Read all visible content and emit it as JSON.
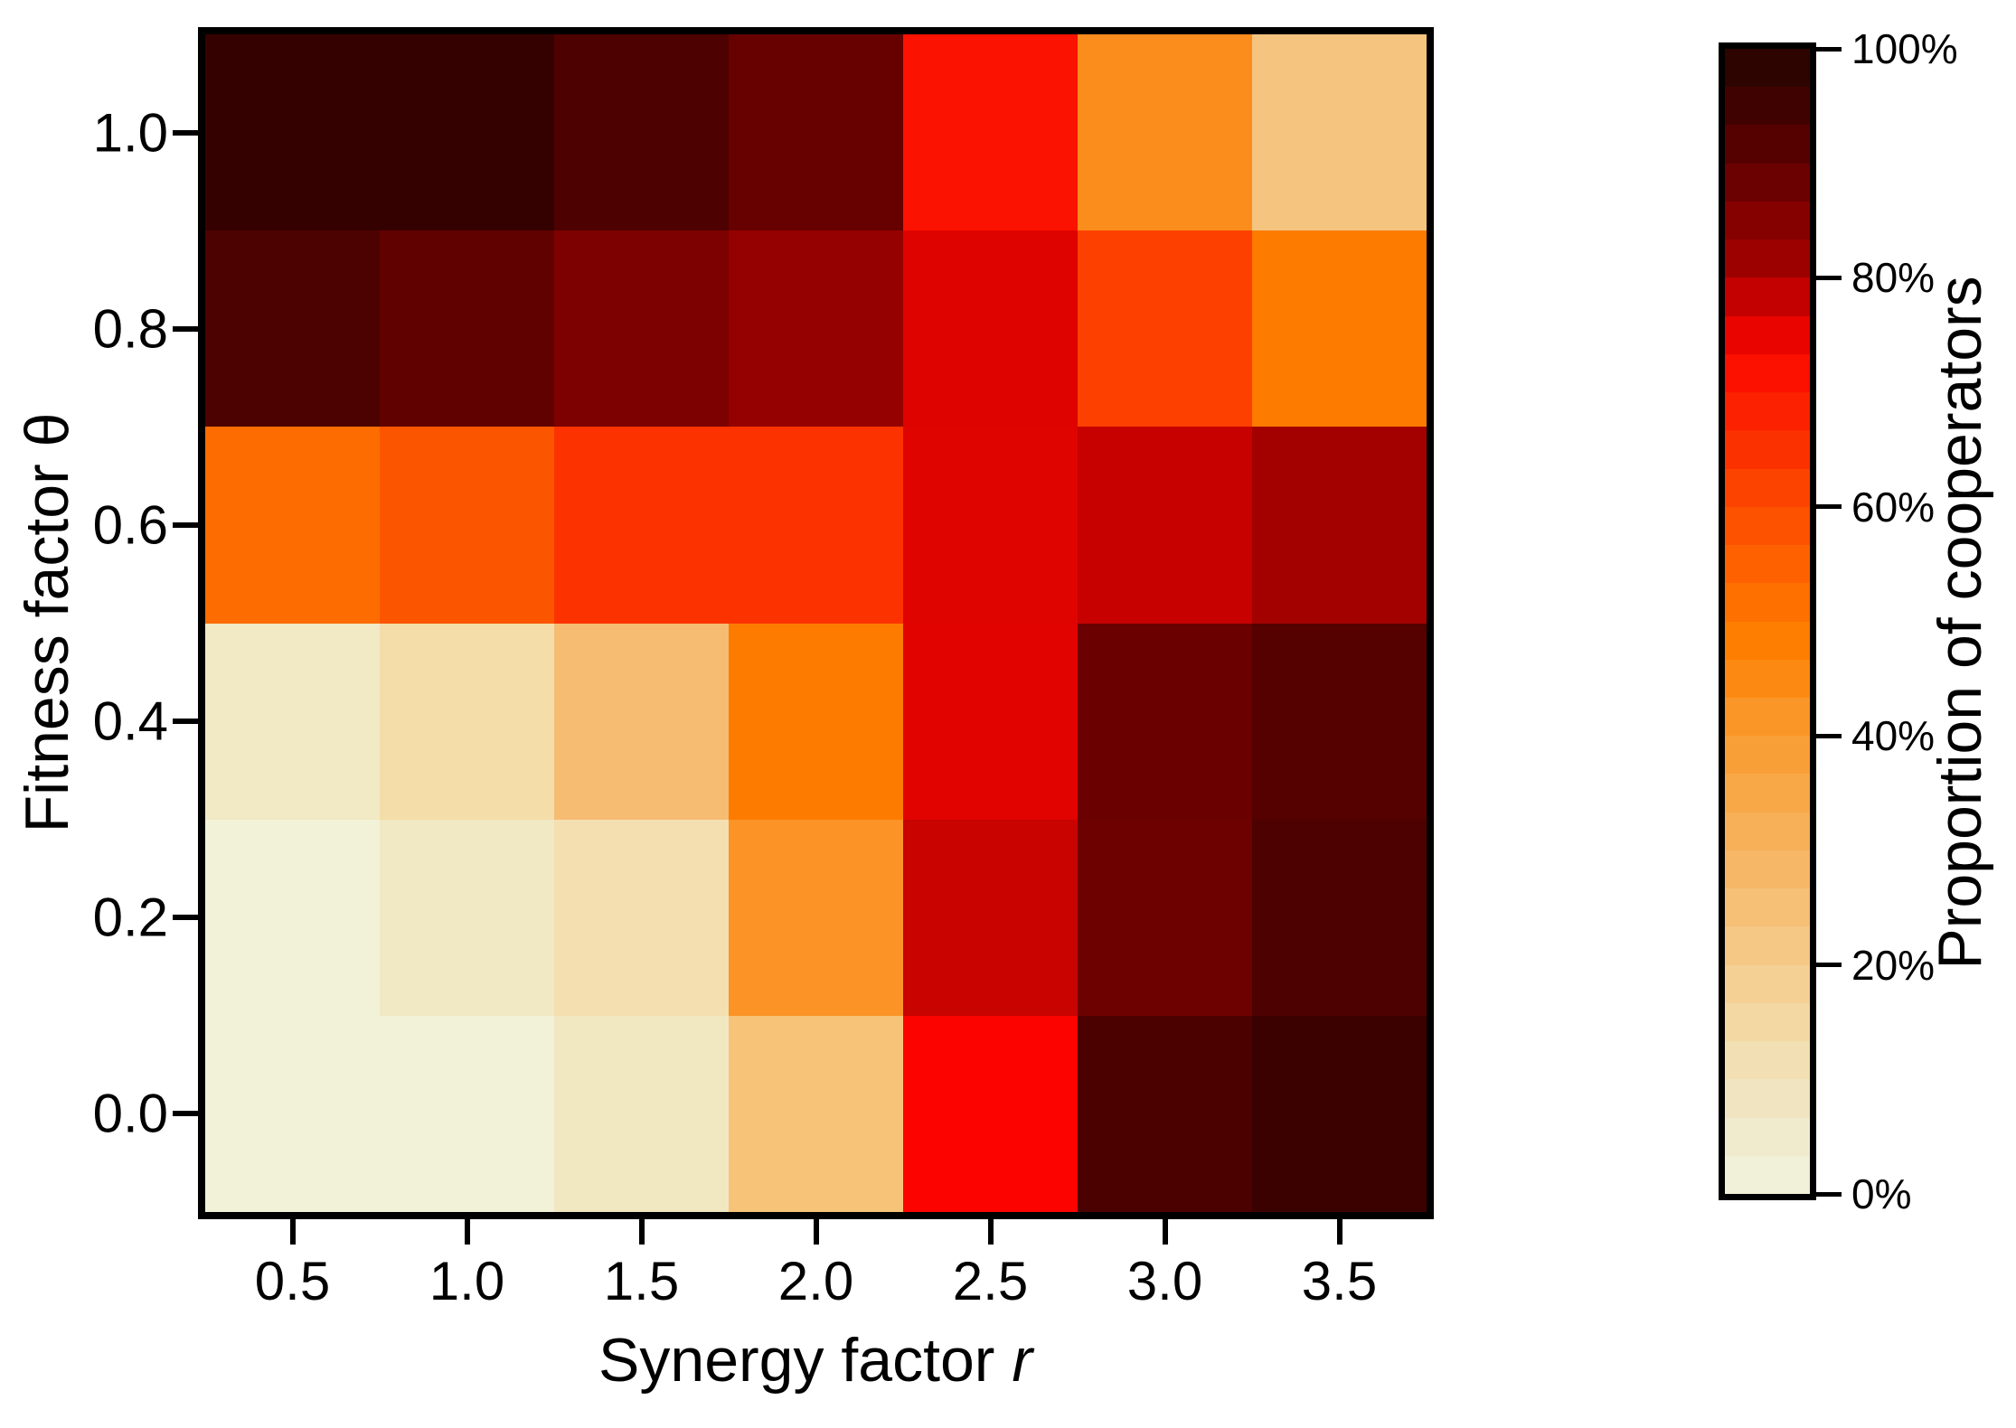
{
  "figure": {
    "background": "#ffffff",
    "xlabel_text": "Synergy factor ",
    "xlabel_symbol": "r",
    "ylabel_text": "Fitness factor θ",
    "x_tick_labels": [
      "0.5",
      "1.0",
      "1.5",
      "2.0",
      "2.5",
      "3.0",
      "3.5"
    ],
    "y_tick_labels": [
      "1.0",
      "0.8",
      "0.6",
      "0.4",
      "0.2",
      "0.0"
    ]
  },
  "colorbar": {
    "label": "Proportion of cooperators",
    "tick_labels": [
      "100%",
      "80%",
      "60%",
      "40%",
      "20%",
      "0%"
    ],
    "segment_colors_top_to_bottom": [
      "#2d0400",
      "#400200",
      "#550100",
      "#6b0100",
      "#850100",
      "#9c0100",
      "#c30100",
      "#ea0400",
      "#fc1000",
      "#fc2100",
      "#fc3100",
      "#fd4300",
      "#fd5200",
      "#fe6200",
      "#fe7000",
      "#fd7e00",
      "#fc8a12",
      "#fa9527",
      "#f99f38",
      "#f8a847",
      "#f7b058",
      "#f6b867",
      "#f6c077",
      "#f5c886",
      "#f4d095",
      "#f3d8a4",
      "#f2dfb3",
      "#f0e5c0",
      "#f1ebcd",
      "#f1f0d8"
    ]
  },
  "chart_data": {
    "type": "heatmap",
    "title": "",
    "xlabel": "Synergy factor r",
    "ylabel": "Fitness factor θ",
    "colorbar_label": "Proportion of cooperators",
    "x_categories": [
      0.5,
      1.0,
      1.5,
      2.0,
      2.5,
      3.0,
      3.5
    ],
    "y_categories_top_to_bottom": [
      1.0,
      0.8,
      0.6,
      0.4,
      0.2,
      0.0
    ],
    "value_unit": "%",
    "value_range": [
      0,
      100
    ],
    "legend_position": "right",
    "grid": false,
    "values_percent": [
      [
        96,
        96,
        93,
        89,
        71,
        43,
        22
      ],
      [
        93,
        90,
        86,
        82,
        76,
        62,
        48
      ],
      [
        51,
        56,
        65,
        65,
        75,
        78,
        81
      ],
      [
        6,
        13,
        26,
        48,
        75,
        88,
        91
      ],
      [
        2,
        6,
        12,
        42,
        78,
        88,
        93
      ],
      [
        2,
        2,
        6,
        23,
        73,
        93,
        95
      ]
    ],
    "cell_colors": [
      [
        "#350100",
        "#350100",
        "#4d0100",
        "#660100",
        "#fc1200",
        "#fb8d1c",
        "#f5c47f"
      ],
      [
        "#4b0200",
        "#600100",
        "#7c0100",
        "#940100",
        "#df0300",
        "#fd4000",
        "#fd7c00"
      ],
      [
        "#fc6c00",
        "#fc5500",
        "#fc3300",
        "#fc3300",
        "#e00400",
        "#c60100",
        "#a30100"
      ],
      [
        "#f2e9c5",
        "#f4dda8",
        "#f6bc72",
        "#fd7c00",
        "#e00300",
        "#6a0100",
        "#540100"
      ],
      [
        "#f2f2d8",
        "#f1e8c4",
        "#f4dfb0",
        "#fb9327",
        "#c80300",
        "#6d0100",
        "#4d0100"
      ],
      [
        "#f2f2d8",
        "#f2f2d8",
        "#f1e8c2",
        "#f6c379",
        "#fd0300",
        "#4b0100",
        "#3a0100"
      ]
    ]
  }
}
